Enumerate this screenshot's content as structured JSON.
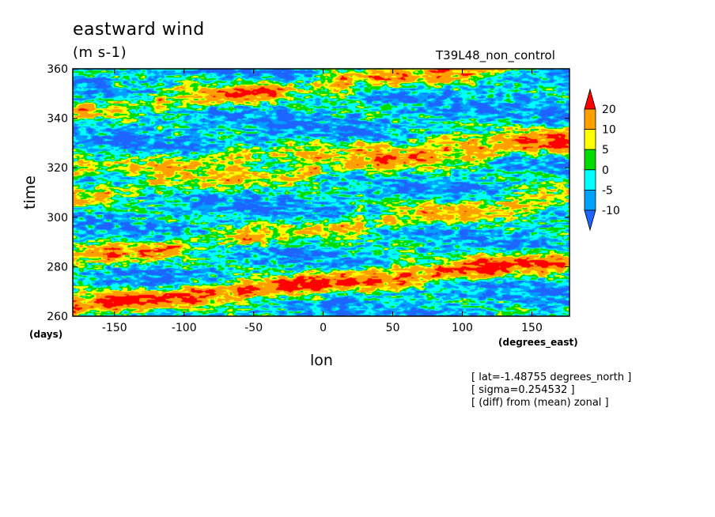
{
  "chart_data": {
    "type": "heatmap",
    "title": "eastward wind",
    "units": "(m s-1)",
    "run_name": "T39L48_non_control",
    "xlabel": "lon",
    "ylabel": "time",
    "x_units": "(degrees_east)",
    "y_units": "(days)",
    "xlim": [
      -180,
      177
    ],
    "ylim": [
      260,
      360
    ],
    "x_ticks": [
      -150,
      -100,
      -50,
      0,
      50,
      100,
      150
    ],
    "x_tick_labels": [
      "-150",
      "-100",
      "-50",
      "0",
      "50",
      "100",
      "150"
    ],
    "y_ticks": [
      260,
      280,
      300,
      320,
      340,
      360
    ],
    "y_tick_labels": [
      "260",
      "280",
      "300",
      "320",
      "340",
      "360"
    ],
    "colorbar": {
      "levels": [
        -10,
        -5,
        0,
        5,
        10,
        20
      ],
      "level_labels": [
        "-10",
        "-5",
        "0",
        "5",
        "10",
        "20"
      ],
      "colors": [
        "#1e64ff",
        "#00a0ff",
        "#00ffff",
        "#00dc00",
        "#ffff00",
        "#ffa000",
        "#ff0000"
      ]
    },
    "features": [
      {
        "x0": -180,
        "t0": 343,
        "slope": 0.06,
        "amp": 18
      },
      {
        "x0": -180,
        "t0": 309,
        "slope": 0.058,
        "amp": 16
      },
      {
        "x0": -180,
        "t0": 283,
        "slope": 0.07,
        "amp": 16
      },
      {
        "x0": -180,
        "t0": 263,
        "slope": 0.06,
        "amp": 15
      },
      {
        "x0": -180,
        "t0": 265,
        "slope": 0.045,
        "amp": 12
      },
      {
        "x0": -180,
        "t0": 319,
        "slope": 0.04,
        "amp": 12
      }
    ],
    "notes": [
      "[ lat=-1.48755 degrees_north ]",
      "[ sigma=0.254532 ]",
      "[ (diff) from (mean) zonal ]"
    ]
  }
}
